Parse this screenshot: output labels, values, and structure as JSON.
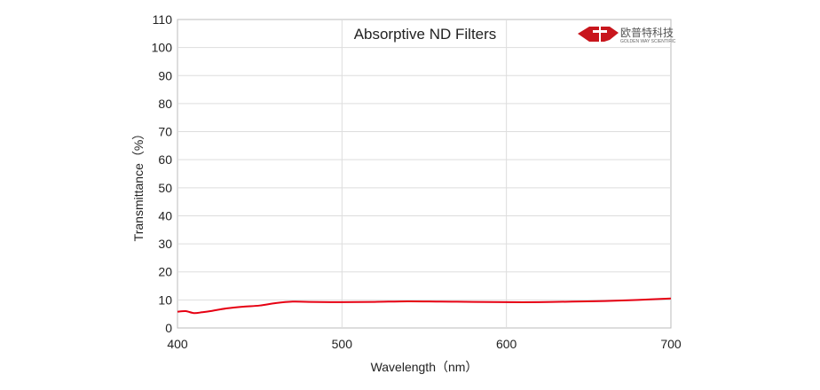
{
  "chart_data": {
    "type": "line",
    "title": "Absorptive ND Filters",
    "xlabel": "Wavelength（nm）",
    "ylabel": "Transmittance（%）",
    "xlim": [
      400,
      700
    ],
    "ylim": [
      0,
      110
    ],
    "xticks": [
      400,
      500,
      600,
      700
    ],
    "yticks": [
      0,
      10,
      20,
      30,
      40,
      50,
      60,
      70,
      80,
      90,
      100,
      110
    ],
    "grid": true,
    "series": [
      {
        "color": "#e60012",
        "x": [
          400,
          405,
          410,
          415,
          420,
          430,
          440,
          450,
          460,
          470,
          480,
          500,
          520,
          540,
          560,
          580,
          600,
          620,
          640,
          660,
          680,
          700
        ],
        "y": [
          5.8,
          6.0,
          5.3,
          5.6,
          6.0,
          7.0,
          7.6,
          8.0,
          8.9,
          9.4,
          9.3,
          9.2,
          9.3,
          9.5,
          9.4,
          9.3,
          9.2,
          9.2,
          9.4,
          9.6,
          10.0,
          10.5
        ]
      }
    ]
  },
  "logo": {
    "name_cn": "欧普特科技",
    "name_en": "GOLDEN WAY SCIENTIFIC",
    "color": "#c8161d"
  }
}
